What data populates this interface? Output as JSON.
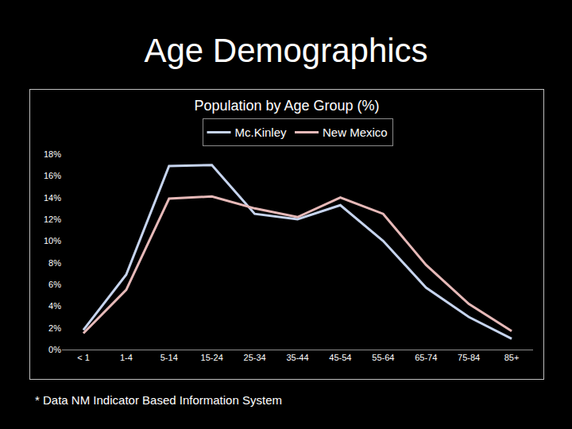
{
  "chart_data": {
    "type": "line",
    "title": "Age Demographics",
    "subtitle": "Population by Age Group (%)",
    "annotations": [
      "* Data NM Indicator Based Information System"
    ],
    "categories": [
      "< 1",
      "1-4",
      "5-14",
      "15-24",
      "25-34",
      "35-44",
      "45-54",
      "55-64",
      "65-74",
      "75-84",
      "85+"
    ],
    "series": [
      {
        "name": "Mc.Kinley",
        "color": "#c6d4ee",
        "values": [
          1.8,
          6.9,
          16.9,
          17.0,
          12.5,
          12.0,
          13.3,
          10.0,
          5.7,
          3.0,
          1.0
        ]
      },
      {
        "name": "New Mexico",
        "color": "#e6b9b8",
        "values": [
          1.5,
          5.5,
          13.9,
          14.1,
          13.0,
          12.2,
          14.0,
          12.5,
          7.8,
          4.2,
          1.7
        ]
      }
    ],
    "ylim": [
      0,
      18
    ],
    "yticks": [
      {
        "value": 0,
        "label": "0%"
      },
      {
        "value": 2,
        "label": "2%"
      },
      {
        "value": 4,
        "label": "4%"
      },
      {
        "value": 6,
        "label": "6%"
      },
      {
        "value": 8,
        "label": "8%"
      },
      {
        "value": 10,
        "label": "10%"
      },
      {
        "value": 12,
        "label": "12%"
      },
      {
        "value": 14,
        "label": "14%"
      },
      {
        "value": 16,
        "label": "16%"
      },
      {
        "value": 18,
        "label": "18%"
      }
    ],
    "grid": false,
    "legend": "top"
  }
}
